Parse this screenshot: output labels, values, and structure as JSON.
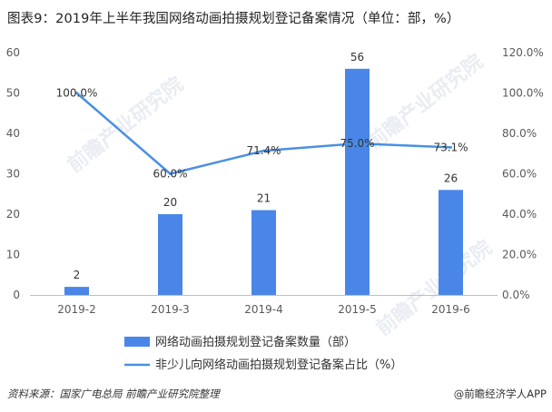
{
  "title": "图表9：2019年上半年我国网络动画拍摄规划登记备案情况（单位：部，%）",
  "source": "资料来源：国家广电总局 前瞻产业研究院整理",
  "brand": "@前瞻经济学人APP",
  "watermark": "前瞻产业研究院",
  "chart_data": {
    "type": "bar",
    "categories": [
      "2019-2",
      "2019-3",
      "2019-4",
      "2019-5",
      "2019-6"
    ],
    "series": [
      {
        "name": "网络动画拍摄规划登记备案数量（部）",
        "type": "bar",
        "values": [
          2,
          20,
          21,
          56,
          26
        ],
        "value_labels": [
          "2",
          "20",
          "21",
          "56",
          "26"
        ],
        "color": "#4a86e8",
        "axis": "left"
      },
      {
        "name": "非少儿向网络动画拍摄规划登记备案占比（%）",
        "type": "line",
        "values": [
          100.0,
          60.0,
          71.4,
          75.0,
          73.1
        ],
        "value_labels": [
          "100.0%",
          "60.0%",
          "71.4%",
          "75.0%",
          "73.1%"
        ],
        "color": "#4a90e2",
        "axis": "right"
      }
    ],
    "y_left": {
      "ylim": [
        0,
        60
      ],
      "ticks": [
        "0",
        "10",
        "20",
        "30",
        "40",
        "50",
        "60"
      ]
    },
    "y_right": {
      "ylim": [
        0,
        120
      ],
      "ticks": [
        "0.0%",
        "20.0%",
        "40.0%",
        "60.0%",
        "80.0%",
        "100.0%",
        "120.0%"
      ]
    },
    "grid": false,
    "legend_position": "bottom"
  }
}
